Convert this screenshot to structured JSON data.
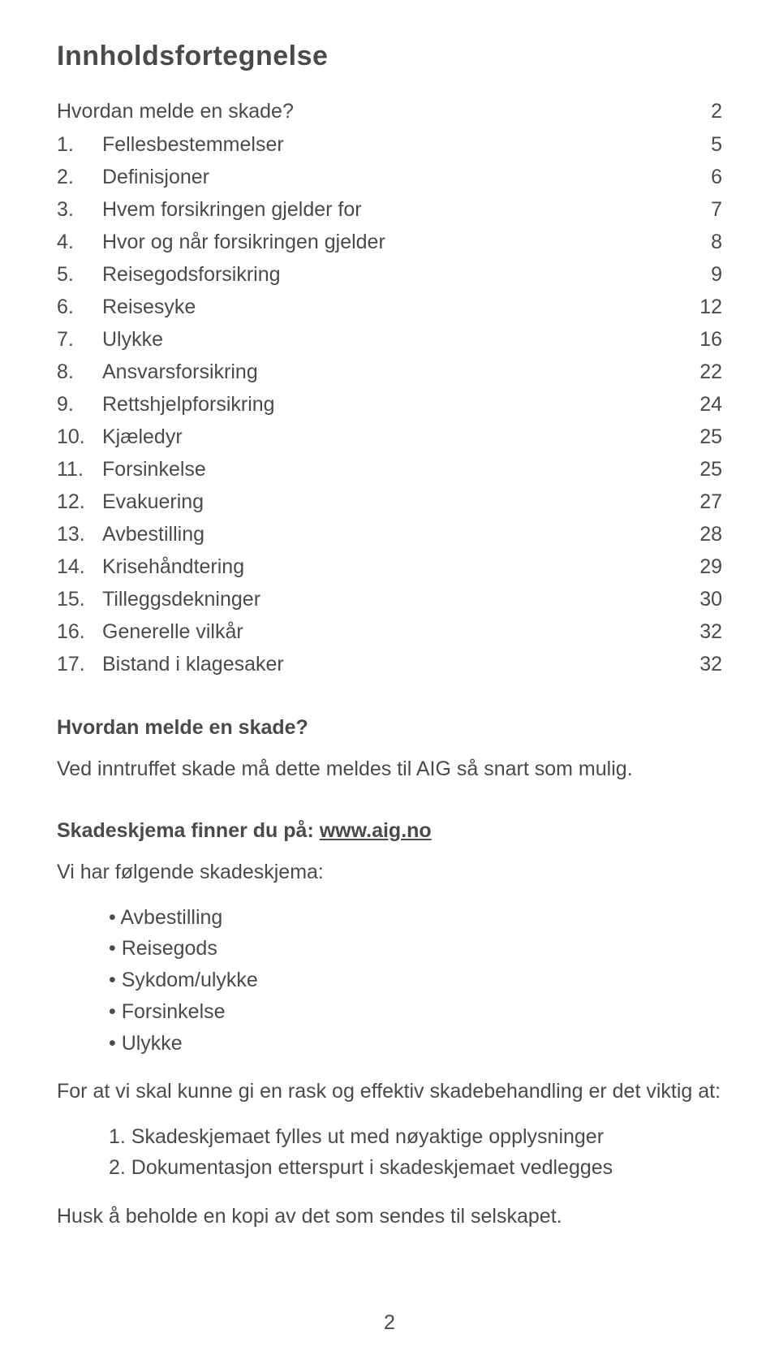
{
  "title": "Innholdsfortegnelse",
  "toc_intro": {
    "label": "Hvordan melde en skade?",
    "page": "2"
  },
  "toc": [
    {
      "num": "1.",
      "label": "Fellesbestemmelser",
      "page": "5"
    },
    {
      "num": "2.",
      "label": "Definisjoner",
      "page": "6"
    },
    {
      "num": "3.",
      "label": "Hvem forsikringen gjelder for",
      "page": "7"
    },
    {
      "num": "4.",
      "label": "Hvor og når forsikringen gjelder",
      "page": "8"
    },
    {
      "num": "5.",
      "label": "Reisegodsforsikring",
      "page": "9"
    },
    {
      "num": "6.",
      "label": "Reisesyke",
      "page": "12"
    },
    {
      "num": "7.",
      "label": "Ulykke",
      "page": "16"
    },
    {
      "num": "8.",
      "label": "Ansvarsforsikring",
      "page": "22"
    },
    {
      "num": "9.",
      "label": "Rettshjelpforsikring",
      "page": "24"
    },
    {
      "num": "10.",
      "label": "Kjæledyr",
      "page": "25"
    },
    {
      "num": "11.",
      "label": "Forsinkelse",
      "page": "25"
    },
    {
      "num": "12.",
      "label": "Evakuering",
      "page": "27"
    },
    {
      "num": "13.",
      "label": "Avbestilling",
      "page": "28"
    },
    {
      "num": "14.",
      "label": "Krisehåndtering",
      "page": "29"
    },
    {
      "num": "15.",
      "label": "Tilleggsdekninger",
      "page": "30"
    },
    {
      "num": "16.",
      "label": "Generelle vilkår",
      "page": "32"
    },
    {
      "num": "17.",
      "label": "Bistand i klagesaker",
      "page": "32"
    }
  ],
  "section1_heading": "Hvordan melde en skade?",
  "section1_body": "Ved inntruffet skade må dette meldes til AIG så snart som mulig.",
  "section2_prefix": "Skadeskjema finner du på: ",
  "section2_link": "www.aig.no",
  "section2_body": "Vi har følgende skadeskjema:",
  "bullets": [
    "Avbestilling",
    "Reisegods",
    "Sykdom/ulykke",
    "Forsinkelse",
    "Ulykke"
  ],
  "section3_body": "For at vi skal kunne gi en rask og effektiv skadebehandling er det viktig at:",
  "numbered": [
    "1. Skadeskjemaet fylles ut med nøyaktige opplysninger",
    "2. Dokumentasjon etterspurt i skadeskjemaet vedlegges"
  ],
  "closing": "Husk å beholde en kopi av det som sendes til selskapet.",
  "page_number": "2"
}
